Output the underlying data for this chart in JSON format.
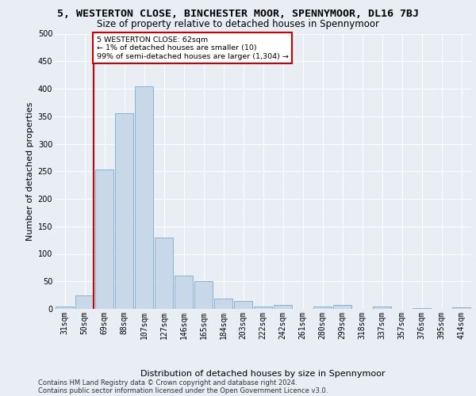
{
  "title_line1": "5, WESTERTON CLOSE, BINCHESTER MOOR, SPENNYMOOR, DL16 7BJ",
  "title_line2": "Size of property relative to detached houses in Spennymoor",
  "xlabel": "Distribution of detached houses by size in Spennymoor",
  "ylabel": "Number of detached properties",
  "categories": [
    "31sqm",
    "50sqm",
    "69sqm",
    "88sqm",
    "107sqm",
    "127sqm",
    "146sqm",
    "165sqm",
    "184sqm",
    "203sqm",
    "222sqm",
    "242sqm",
    "261sqm",
    "280sqm",
    "299sqm",
    "318sqm",
    "337sqm",
    "357sqm",
    "376sqm",
    "395sqm",
    "414sqm"
  ],
  "values": [
    5,
    25,
    253,
    355,
    405,
    130,
    60,
    50,
    18,
    14,
    5,
    7,
    0,
    5,
    7,
    0,
    5,
    0,
    2,
    0,
    3
  ],
  "bar_color": "#c8d8e8",
  "bar_edge_color": "#7aabcc",
  "red_line_index": 1.5,
  "annotation_box_text": "5 WESTERTON CLOSE: 62sqm\n← 1% of detached houses are smaller (10)\n99% of semi-detached houses are larger (1,304) →",
  "annotation_box_color": "#cc0000",
  "background_color": "#e8eef4",
  "ylim": [
    0,
    500
  ],
  "yticks": [
    0,
    50,
    100,
    150,
    200,
    250,
    300,
    350,
    400,
    450,
    500
  ],
  "footer_line1": "Contains HM Land Registry data © Crown copyright and database right 2024.",
  "footer_line2": "Contains public sector information licensed under the Open Government Licence v3.0.",
  "grid_color": "#ffffff",
  "title_fontsize": 9.5,
  "subtitle_fontsize": 8.5,
  "axis_label_fontsize": 8,
  "tick_fontsize": 7,
  "footer_fontsize": 6
}
